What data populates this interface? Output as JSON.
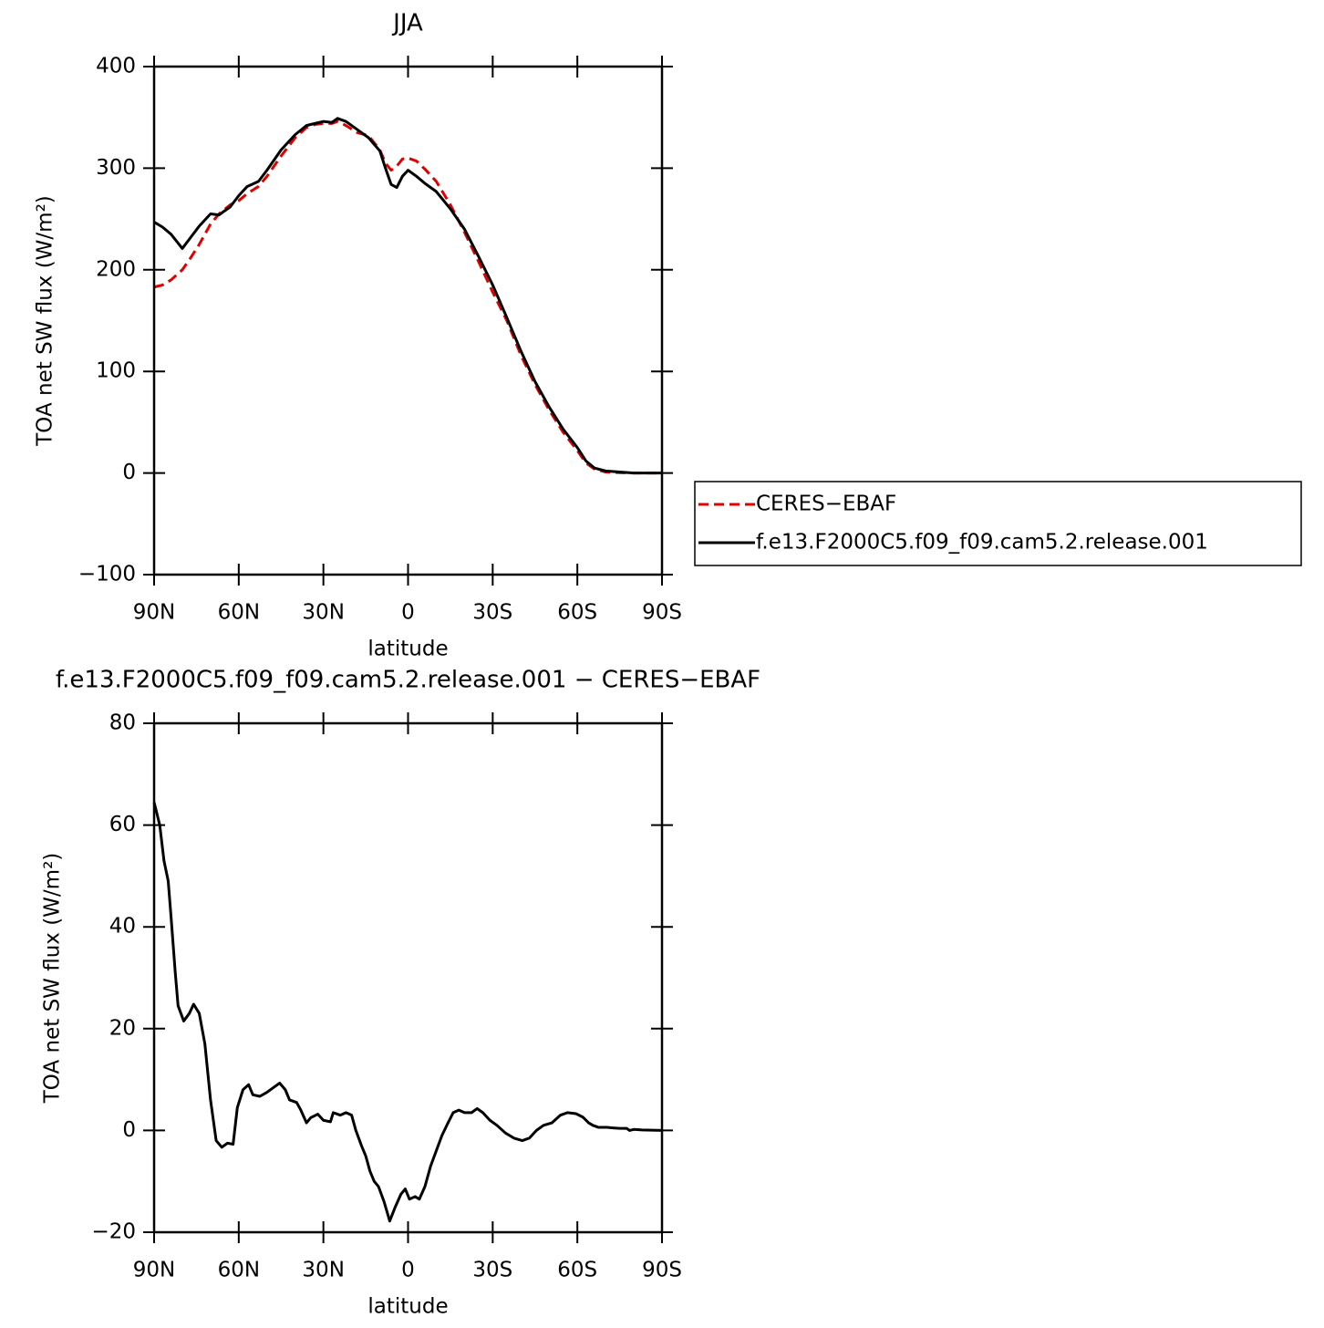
{
  "chart_data": [
    {
      "type": "line",
      "title": "JJA",
      "x_label": "latitude",
      "y_label": "TOA net SW flux (W/m²)",
      "x": [
        90,
        87,
        84,
        80,
        77,
        74,
        70,
        67,
        63,
        60,
        57,
        53,
        50,
        45,
        40,
        36,
        33,
        30,
        27,
        25,
        22,
        18,
        14,
        10,
        8,
        6,
        4,
        2,
        0,
        -3,
        -6,
        -10,
        -15,
        -20,
        -25,
        -30,
        -35,
        -40,
        -45,
        -50,
        -55,
        -60,
        -63,
        -66,
        -70,
        -75,
        -80,
        -85,
        -90
      ],
      "series": [
        {
          "name": "CERES−EBAF",
          "color": "#e00000",
          "dashed": true,
          "values": [
            183,
            185,
            190,
            200,
            212,
            225,
            245,
            255,
            264,
            268,
            275,
            282,
            292,
            312,
            330,
            340,
            343,
            344,
            344,
            346,
            342,
            335,
            332,
            318,
            305,
            298,
            302,
            309,
            310,
            307,
            299,
            287,
            264,
            237,
            208,
            178,
            150,
            116,
            87,
            62,
            40,
            22,
            10,
            4,
            1,
            0.3,
            0,
            0,
            0
          ]
        },
        {
          "name": "f.e13.F2000C5.f09_f09.cam5.2.release.001",
          "color": "#000000",
          "dashed": false,
          "values": [
            247,
            242,
            235,
            221,
            232,
            243,
            255,
            254,
            262,
            273,
            282,
            287,
            298,
            318,
            333,
            342,
            344,
            346,
            345,
            349,
            346,
            338,
            330,
            317,
            300,
            284,
            281,
            292,
            298,
            292,
            285,
            277,
            260,
            240,
            213,
            185,
            153,
            120,
            90,
            65,
            43,
            25,
            12,
            5,
            2,
            1,
            0,
            0,
            0
          ]
        }
      ],
      "xlim": [
        90,
        -90
      ],
      "xticks": [
        {
          "value": 90,
          "label": "90N"
        },
        {
          "value": 60,
          "label": "60N"
        },
        {
          "value": 30,
          "label": "30N"
        },
        0,
        {
          "value": -30,
          "label": "30S"
        },
        {
          "value": -60,
          "label": "60S"
        },
        {
          "value": -90,
          "label": "90S"
        }
      ],
      "ylim": [
        -100,
        400
      ],
      "yticks": [
        {
          "value": -100,
          "label": "−100"
        },
        0,
        100,
        200,
        300,
        400
      ],
      "legend": "right"
    },
    {
      "type": "line",
      "title": "f.e13.F2000C5.f09_f09.cam5.2.release.001 − CERES−EBAF",
      "x_label": "latitude",
      "y_label": "TOA net SW flux (W/m²)",
      "x": [
        90,
        88,
        86.5,
        85,
        84,
        82.5,
        81.5,
        79.5,
        77.5,
        76,
        74,
        72,
        70,
        68,
        66,
        64,
        62,
        60.5,
        58.5,
        56.5,
        55,
        52.5,
        50,
        47.5,
        45.5,
        43.5,
        42,
        39.5,
        38,
        36,
        34.5,
        32,
        30,
        27.5,
        26.5,
        24,
        22,
        20,
        18.5,
        16.5,
        15,
        13.5,
        12,
        10.5,
        8.5,
        6.5,
        4.5,
        2.5,
        1,
        -0.5,
        -2.5,
        -4,
        -6,
        -8,
        -10,
        -12,
        -14,
        -16,
        -18,
        -20,
        -22.5,
        -24.5,
        -26.5,
        -29,
        -31.5,
        -34.5,
        -37.5,
        -40.5,
        -43,
        -45.5,
        -48,
        -51,
        -54,
        -56.5,
        -59.5,
        -62,
        -64,
        -65.5,
        -67.5,
        -70.5,
        -72.5,
        -75,
        -77.5,
        -78.5,
        -80,
        -83,
        -90
      ],
      "series": [
        {
          "color": "#000000",
          "dashed": false,
          "values": [
            64.5,
            60,
            53,
            49,
            42,
            31,
            24.5,
            21.5,
            23,
            24.8,
            23,
            17,
            6,
            -2,
            -3.3,
            -2.5,
            -2.7,
            4.5,
            8,
            9,
            7,
            6.7,
            7.5,
            8.5,
            9.3,
            8,
            6,
            5.5,
            4,
            1.5,
            2.5,
            3.2,
            2,
            1.7,
            3.5,
            3,
            3.5,
            3,
            0,
            -3,
            -5,
            -8,
            -10,
            -11,
            -14,
            -17.8,
            -15,
            -12.5,
            -11.5,
            -13.5,
            -13,
            -13.5,
            -11,
            -7,
            -4,
            -1,
            1.3,
            3.5,
            4,
            3.5,
            3.5,
            4.3,
            3.5,
            2,
            1,
            -0.5,
            -1.5,
            -2,
            -1.5,
            0,
            1,
            1.5,
            3,
            3.5,
            3.3,
            2.6,
            1.5,
            1,
            0.6,
            0.6,
            0.5,
            0.4,
            0.4,
            0,
            0.2,
            0.1,
            0
          ]
        }
      ],
      "xlim": [
        90,
        -90
      ],
      "xticks": [
        {
          "value": 90,
          "label": "90N"
        },
        {
          "value": 60,
          "label": "60N"
        },
        {
          "value": 30,
          "label": "30N"
        },
        0,
        {
          "value": -30,
          "label": "30S"
        },
        {
          "value": -60,
          "label": "60S"
        },
        {
          "value": -90,
          "label": "90S"
        }
      ],
      "ylim": [
        -20,
        80
      ],
      "yticks": [
        {
          "value": -20,
          "label": "−20"
        },
        0,
        20,
        40,
        60,
        80
      ]
    }
  ]
}
